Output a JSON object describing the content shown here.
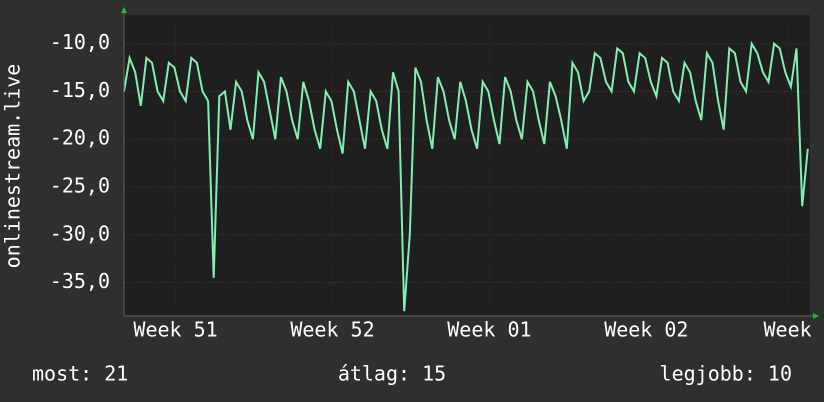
{
  "chart_data": {
    "type": "line",
    "ylabel": "onlinestream.live",
    "ylim": [
      -38.5,
      -7
    ],
    "yticks": [
      {
        "value": -10,
        "label": "-10,0"
      },
      {
        "value": -15,
        "label": "-15,0"
      },
      {
        "value": -20,
        "label": "-20,0"
      },
      {
        "value": -25,
        "label": "-25,0"
      },
      {
        "value": -30,
        "label": "-30,0"
      },
      {
        "value": -35,
        "label": "-35,0"
      }
    ],
    "xlim": [
      0,
      30.6
    ],
    "xticks": [
      {
        "value": 2.3,
        "label": "Week 51"
      },
      {
        "value": 9.3,
        "label": "Week 52"
      },
      {
        "value": 16.3,
        "label": "Week 01"
      },
      {
        "value": 23.3,
        "label": "Week 02"
      },
      {
        "value": 29.6,
        "label": "Week"
      }
    ],
    "grid": true,
    "series": [
      {
        "color": "#80f0b0",
        "x": [
          0,
          0.25,
          0.5,
          0.75,
          1,
          1.25,
          1.5,
          1.75,
          2,
          2.25,
          2.5,
          2.75,
          3,
          3.25,
          3.5,
          3.75,
          4,
          4.25,
          4.5,
          4.75,
          5,
          5.25,
          5.5,
          5.75,
          6,
          6.25,
          6.5,
          6.75,
          7,
          7.25,
          7.5,
          7.75,
          8,
          8.25,
          8.5,
          8.75,
          9,
          9.25,
          9.5,
          9.75,
          10,
          10.25,
          10.5,
          10.75,
          11,
          11.25,
          11.5,
          11.75,
          12,
          12.25,
          12.5,
          12.75,
          13,
          13.25,
          13.5,
          13.75,
          14,
          14.25,
          14.5,
          14.75,
          15,
          15.25,
          15.5,
          15.75,
          16,
          16.25,
          16.5,
          16.75,
          17,
          17.25,
          17.5,
          17.75,
          18,
          18.25,
          18.5,
          18.75,
          19,
          19.25,
          19.5,
          19.75,
          20,
          20.25,
          20.5,
          20.75,
          21,
          21.25,
          21.5,
          21.75,
          22,
          22.25,
          22.5,
          22.75,
          23,
          23.25,
          23.5,
          23.75,
          24,
          24.25,
          24.5,
          24.75,
          25,
          25.25,
          25.5,
          25.75,
          26,
          26.25,
          26.5,
          26.75,
          27,
          27.25,
          27.5,
          27.75,
          28,
          28.25,
          28.5,
          28.75,
          29,
          29.25,
          29.5,
          29.75,
          30,
          30.25,
          30.5
        ],
        "values": [
          -15,
          -11.5,
          -13,
          -16.5,
          -11.5,
          -12,
          -15,
          -16,
          -12,
          -12.5,
          -15,
          -16,
          -11.5,
          -12,
          -15,
          -16,
          -34.5,
          -15.5,
          -15,
          -19,
          -14,
          -15,
          -18,
          -20,
          -13,
          -14,
          -17,
          -20,
          -13.5,
          -15,
          -18,
          -20,
          -14,
          -16,
          -19,
          -21,
          -15,
          -16,
          -19,
          -21.5,
          -14,
          -15,
          -18,
          -21,
          -15,
          -16,
          -19,
          -21,
          -13,
          -15,
          -38,
          -30,
          -12.5,
          -14,
          -18,
          -21,
          -13.5,
          -15,
          -18,
          -20,
          -14,
          -16,
          -19,
          -21,
          -14,
          -15,
          -18,
          -20.5,
          -13.5,
          -15,
          -18,
          -20,
          -14,
          -15,
          -18,
          -20.5,
          -14,
          -15.5,
          -18,
          -21,
          -12,
          -13,
          -16,
          -15,
          -11,
          -11.5,
          -14,
          -15,
          -10.5,
          -11,
          -14,
          -15,
          -11,
          -11.5,
          -14,
          -15.5,
          -11.5,
          -12,
          -15,
          -16,
          -12,
          -13,
          -16,
          -18,
          -11,
          -12,
          -16,
          -19,
          -10.5,
          -11,
          -14,
          -15,
          -10,
          -11,
          -13,
          -14,
          -10,
          -10.5,
          -13,
          -14.5,
          -10.5,
          -27,
          -21
        ]
      }
    ],
    "footer": [
      "most: 21",
      "átlag: 15",
      "legjobb: 10"
    ]
  }
}
